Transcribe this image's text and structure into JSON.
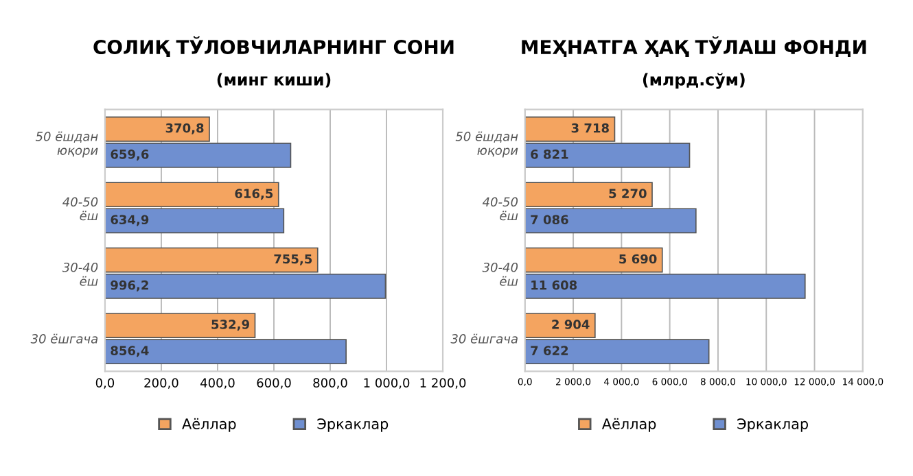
{
  "chart_data": [
    {
      "type": "bar",
      "orientation": "horizontal",
      "title": "СОЛИҚ ТЎЛОВЧИЛАРНИНГ СОНИ",
      "subtitle": "(минг киши)",
      "categories": [
        "50 ёшдан\nюқори",
        "40-50\nёш",
        "30-40\nёш",
        "30 ёшгача"
      ],
      "series": [
        {
          "name": "Аёллар",
          "color": "#f4a460",
          "values": [
            370.8,
            616.5,
            755.5,
            532.9
          ],
          "value_labels": [
            "370,8",
            "616,5",
            "755,5",
            "532,9"
          ]
        },
        {
          "name": "Эркаклар",
          "color": "#6f8fd0",
          "values": [
            659.6,
            634.9,
            996.2,
            856.4
          ],
          "value_labels": [
            "659,6",
            "634,9",
            "996,2",
            "856,4"
          ]
        }
      ],
      "xlim": [
        0,
        1200
      ],
      "xticks": [
        {
          "value": 0,
          "label": "0,0"
        },
        {
          "value": 200,
          "label": "200,0"
        },
        {
          "value": 400,
          "label": "400,0"
        },
        {
          "value": 600,
          "label": "600,0"
        },
        {
          "value": 800,
          "label": "800,0"
        },
        {
          "value": 1000,
          "label": "1 000,0"
        },
        {
          "value": 1200,
          "label": "1 200,0"
        }
      ],
      "grid": "x",
      "legend": "bottom"
    },
    {
      "type": "bar",
      "orientation": "horizontal",
      "title": "МЕҲНАТГА ҲАҚ ТЎЛАШ ФОНДИ",
      "subtitle": "(млрд.сўм)",
      "categories": [
        "50 ёшдан\nюқори",
        "40-50\nёш",
        "30-40\nёш",
        "30 ёшгача"
      ],
      "series": [
        {
          "name": "Аёллар",
          "color": "#f4a460",
          "values": [
            3718,
            5270,
            5690,
            2904
          ],
          "value_labels": [
            "3 718",
            "5 270",
            "5 690",
            "2 904"
          ]
        },
        {
          "name": "Эркаклар",
          "color": "#6f8fd0",
          "values": [
            6821,
            7086,
            11608,
            7622
          ],
          "value_labels": [
            "6 821",
            "7 086",
            "11 608",
            "7 622"
          ]
        }
      ],
      "xlim": [
        0,
        14000
      ],
      "xticks": [
        {
          "value": 0,
          "label": "0,0"
        },
        {
          "value": 2000,
          "label": "2 000,0"
        },
        {
          "value": 4000,
          "label": "4 000,0"
        },
        {
          "value": 6000,
          "label": "6 000,0"
        },
        {
          "value": 8000,
          "label": "8 000,0"
        },
        {
          "value": 10000,
          "label": "10 000,0"
        },
        {
          "value": 12000,
          "label": "12 000,0"
        },
        {
          "value": 14000,
          "label": "14 000,0"
        }
      ],
      "grid": "x",
      "legend": "bottom"
    }
  ]
}
